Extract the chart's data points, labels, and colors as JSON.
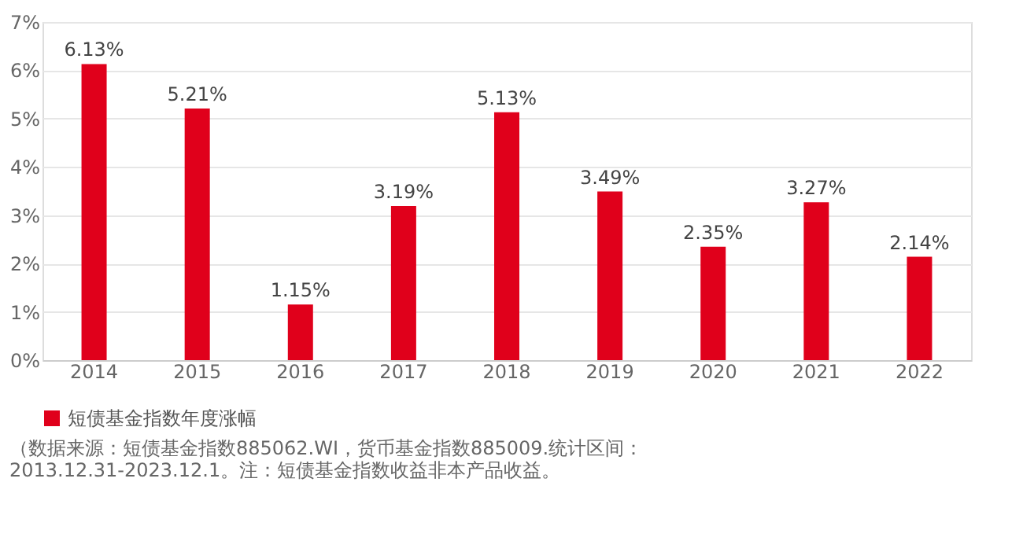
{
  "chart_data": {
    "type": "bar",
    "categories": [
      "2014",
      "2015",
      "2016",
      "2017",
      "2018",
      "2019",
      "2020",
      "2021",
      "2022"
    ],
    "series": [
      {
        "name": "短债基金指数年度涨幅",
        "color": "#e0001b",
        "values": [
          6.13,
          5.21,
          1.15,
          3.19,
          5.13,
          3.49,
          2.35,
          3.27,
          2.14
        ]
      }
    ],
    "value_labels": [
      "6.13%",
      "5.21%",
      "1.15%",
      "3.19%",
      "5.13%",
      "3.49%",
      "2.35%",
      "3.27%",
      "2.14%"
    ],
    "ylim": [
      0,
      7
    ],
    "yticks": [
      {
        "value": 0,
        "label": "0%"
      },
      {
        "value": 1,
        "label": "1%"
      },
      {
        "value": 2,
        "label": "2%"
      },
      {
        "value": 3,
        "label": "3%"
      },
      {
        "value": 4,
        "label": "4%"
      },
      {
        "value": 5,
        "label": "5%"
      },
      {
        "value": 6,
        "label": "6%"
      },
      {
        "value": 7,
        "label": "7%"
      }
    ],
    "grid": "y",
    "legend": "bottom",
    "annotations": [
      "（数据来源：短债基金指数885062.WI，货币基金指数885009.统计区间：",
      "2013.12.31-2023.12.1。注：短债基金指数收益非本产品收益。"
    ]
  }
}
